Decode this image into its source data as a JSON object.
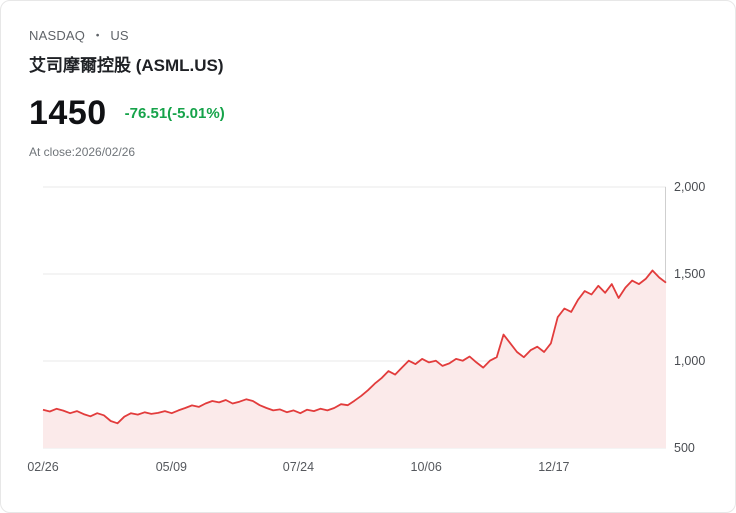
{
  "header": {
    "exchange": "NASDAQ",
    "dot": "・",
    "region": "US",
    "title": "艾司摩爾控股 (ASML.US)",
    "price": "1450",
    "change": "-76.51(-5.01%)",
    "as_of": "At close:2026/02/26"
  },
  "colors": {
    "line": "#e23c3c",
    "area_fill": "#fbeaea",
    "grid": "#e9e9e9",
    "axis": "#cfcfcf",
    "change": "#16a34a"
  },
  "chart_data": {
    "type": "area",
    "title": "ASML.US 1-year price history",
    "ylim": [
      500,
      2000
    ],
    "grid": true,
    "legend": false,
    "y_ticks": [
      {
        "value": 2000,
        "label": "2,000"
      },
      {
        "value": 1500,
        "label": "1,500"
      },
      {
        "value": 1000,
        "label": "1,000"
      },
      {
        "value": 500,
        "label": "500"
      }
    ],
    "x_ticks": [
      {
        "pos": 0.0,
        "label": "02/26"
      },
      {
        "pos": 0.206,
        "label": "05/09"
      },
      {
        "pos": 0.41,
        "label": "07/24"
      },
      {
        "pos": 0.615,
        "label": "10/06"
      },
      {
        "pos": 0.82,
        "label": "12/17"
      }
    ],
    "values": [
      720,
      710,
      725,
      715,
      700,
      712,
      695,
      682,
      700,
      688,
      655,
      642,
      680,
      700,
      692,
      705,
      696,
      702,
      712,
      700,
      716,
      730,
      745,
      736,
      756,
      770,
      762,
      776,
      756,
      766,
      780,
      770,
      746,
      730,
      716,
      722,
      706,
      716,
      700,
      720,
      712,
      726,
      716,
      730,
      752,
      746,
      772,
      800,
      832,
      870,
      902,
      942,
      922,
      962,
      1002,
      982,
      1012,
      992,
      1002,
      972,
      986,
      1012,
      1002,
      1026,
      992,
      962,
      1002,
      1022,
      1152,
      1102,
      1052,
      1022,
      1062,
      1082,
      1052,
      1102,
      1252,
      1302,
      1282,
      1352,
      1402,
      1382,
      1432,
      1392,
      1442,
      1362,
      1422,
      1462,
      1442,
      1472,
      1520,
      1480,
      1450
    ]
  }
}
